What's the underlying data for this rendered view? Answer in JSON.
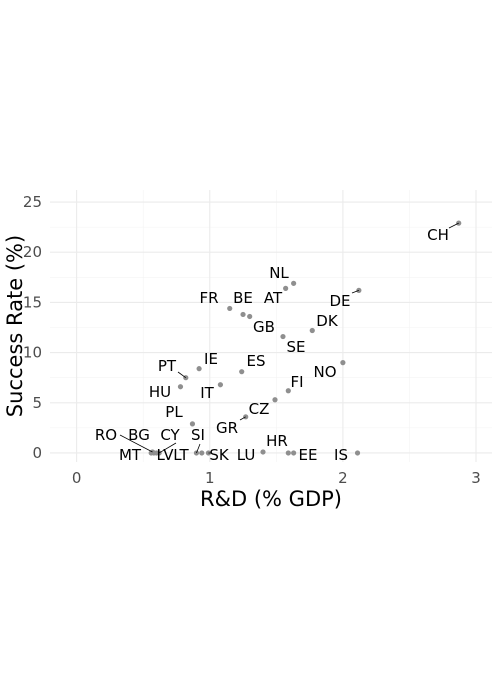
{
  "chart_data": {
    "type": "scatter",
    "xlabel": "R&D (% GDP)",
    "ylabel": "Success Rate (%)",
    "xlim": [
      -0.2,
      3.12
    ],
    "ylim": [
      -0.9,
      26.2
    ],
    "x_ticks": [
      0,
      1,
      2,
      3
    ],
    "y_ticks": [
      0,
      5,
      10,
      15,
      20,
      25
    ],
    "grid": true,
    "legend": "none",
    "colors": {
      "point": "#8f8f8f",
      "grid": "#ebebeb",
      "text": "#4d4d4d"
    },
    "points": [
      {
        "label": "CH",
        "x": 2.87,
        "y": 22.9
      },
      {
        "label": "NL",
        "x": 1.63,
        "y": 16.9
      },
      {
        "label": "AT",
        "x": 1.57,
        "y": 16.4
      },
      {
        "label": "DE",
        "x": 2.12,
        "y": 16.2
      },
      {
        "label": "FR",
        "x": 1.15,
        "y": 14.4
      },
      {
        "label": "BE",
        "x": 1.25,
        "y": 13.8
      },
      {
        "label": "DK",
        "x": 1.77,
        "y": 12.2
      },
      {
        "label": "GB",
        "x": 1.3,
        "y": 13.6
      },
      {
        "label": "SE",
        "x": 1.55,
        "y": 11.6
      },
      {
        "label": "NO",
        "x": 2.0,
        "y": 9.0
      },
      {
        "label": "IE",
        "x": 0.92,
        "y": 8.4
      },
      {
        "label": "ES",
        "x": 1.24,
        "y": 8.1
      },
      {
        "label": "PT",
        "x": 0.82,
        "y": 7.5
      },
      {
        "label": "FI",
        "x": 1.59,
        "y": 6.2
      },
      {
        "label": "HU",
        "x": 0.78,
        "y": 6.6
      },
      {
        "label": "IT",
        "x": 1.08,
        "y": 6.8
      },
      {
        "label": "CZ",
        "x": 1.49,
        "y": 5.3
      },
      {
        "label": "PL",
        "x": 0.87,
        "y": 2.9
      },
      {
        "label": "GR",
        "x": 1.27,
        "y": 3.6
      },
      {
        "label": "RO",
        "x": 0.57,
        "y": 0.1
      },
      {
        "label": "BG",
        "x": 0.58,
        "y": 0.0
      },
      {
        "label": "CY",
        "x": 0.62,
        "y": 0.0
      },
      {
        "label": "SI",
        "x": 0.9,
        "y": 0.0
      },
      {
        "label": "HR",
        "x": 1.4,
        "y": 0.1
      },
      {
        "label": "MT",
        "x": 0.56,
        "y": 0.0
      },
      {
        "label": "LV",
        "x": 0.6,
        "y": 0.0
      },
      {
        "label": "LT",
        "x": 0.94,
        "y": 0.0
      },
      {
        "label": "SK",
        "x": 0.99,
        "y": 0.0
      },
      {
        "label": "LU",
        "x": 1.59,
        "y": 0.0
      },
      {
        "label": "EE",
        "x": 1.63,
        "y": 0.0
      },
      {
        "label": "IS",
        "x": 2.11,
        "y": 0.0
      }
    ]
  }
}
